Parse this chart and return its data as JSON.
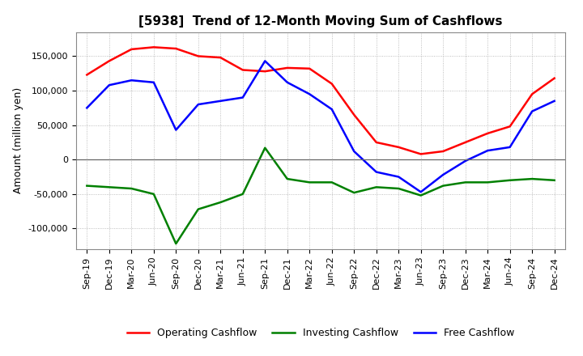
{
  "title": "[5938]  Trend of 12-Month Moving Sum of Cashflows",
  "ylabel": "Amount (million yen)",
  "x_labels": [
    "Sep-19",
    "Dec-19",
    "Mar-20",
    "Jun-20",
    "Sep-20",
    "Dec-20",
    "Mar-21",
    "Jun-21",
    "Sep-21",
    "Dec-21",
    "Mar-22",
    "Jun-22",
    "Sep-22",
    "Dec-22",
    "Mar-23",
    "Jun-23",
    "Sep-23",
    "Dec-23",
    "Mar-24",
    "Jun-24",
    "Sep-24",
    "Dec-24"
  ],
  "operating_cashflow": [
    123000,
    143000,
    160000,
    163000,
    161000,
    150000,
    148000,
    130000,
    128000,
    133000,
    132000,
    110000,
    65000,
    25000,
    18000,
    8000,
    12000,
    25000,
    38000,
    48000,
    95000,
    118000
  ],
  "investing_cashflow": [
    -38000,
    -40000,
    -42000,
    -50000,
    -122000,
    -72000,
    -62000,
    -50000,
    17000,
    -28000,
    -33000,
    -33000,
    -48000,
    -40000,
    -42000,
    -52000,
    -38000,
    -33000,
    -33000,
    -30000,
    -28000,
    -30000
  ],
  "free_cashflow": [
    75000,
    108000,
    115000,
    112000,
    43000,
    80000,
    85000,
    90000,
    143000,
    112000,
    95000,
    73000,
    12000,
    -18000,
    -25000,
    -47000,
    -22000,
    -2000,
    13000,
    18000,
    70000,
    85000
  ],
  "operating_color": "#ff0000",
  "investing_color": "#008000",
  "free_color": "#0000ff",
  "ylim": [
    -130000,
    185000
  ],
  "yticks": [
    -100000,
    -50000,
    0,
    50000,
    100000,
    150000
  ],
  "line_width": 1.8,
  "background_color": "#ffffff",
  "grid_color": "#999999",
  "title_fontsize": 11,
  "ylabel_fontsize": 9,
  "tick_fontsize": 8,
  "legend_fontsize": 9
}
